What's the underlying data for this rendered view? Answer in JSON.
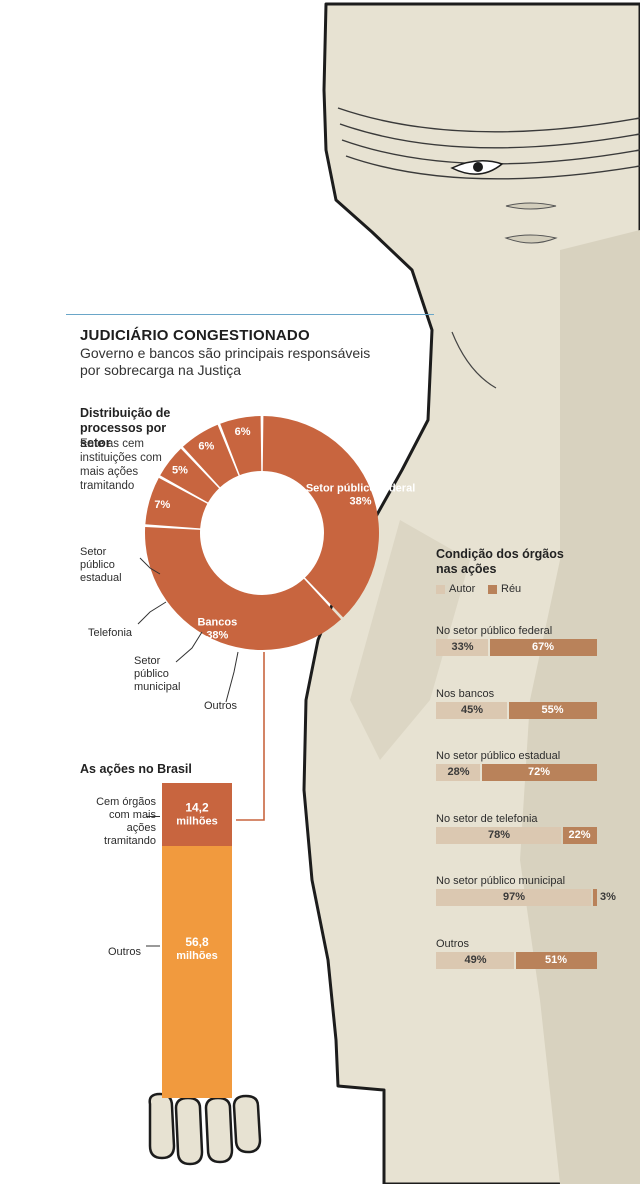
{
  "title": "JUDICIÁRIO CONGESTIONADO",
  "subtitle": "Governo e bancos são principais responsáveis por sobrecarga na Justiça",
  "colors": {
    "donut": "#c8653f",
    "autor": "#dbc8b1",
    "reu": "#b9825a",
    "outros_bar": "#f19a3e",
    "cem_bar": "#c8653f",
    "statue_bg": "#e7e2d2",
    "statue_shadow": "#d3cebc",
    "rule": "#6aa6c8"
  },
  "donut": {
    "heading": "Distribuição de processos por setor",
    "note": "Ente as cem instituições com mais ações tramitando"
  },
  "brasil": {
    "heading": "As ações no Brasil",
    "cem_label": "Cem órgãos com mais ações tramitando",
    "outros_label": "Outros"
  },
  "condicao": {
    "heading": "Condição dos órgãos nas ações",
    "legend_autor": "Autor",
    "legend_reu": "Réu"
  },
  "chart_data": [
    {
      "type": "pie",
      "title": "Distribuição de processos por setor",
      "subtitle": "Ente as cem instituições com mais ações tramitando",
      "unit": "%",
      "slices": [
        {
          "label": "Setor público federal",
          "value": 38,
          "display": "38%"
        },
        {
          "label": "Bancos",
          "value": 38,
          "display": "38%"
        },
        {
          "label": "Outros",
          "value": 7,
          "display": "7%"
        },
        {
          "label": "Setor público municipal",
          "value": 5,
          "display": "5%"
        },
        {
          "label": "Telefonia",
          "value": 6,
          "display": "6%"
        },
        {
          "label": "Setor público estadual",
          "value": 6,
          "display": "6%"
        }
      ]
    },
    {
      "type": "bar",
      "title": "As ações no Brasil",
      "stacked": true,
      "unit": "milhões",
      "segments": [
        {
          "label": "Cem órgãos com mais ações tramitando",
          "value": 14.2,
          "display_value": "14,2",
          "display_unit": "milhões"
        },
        {
          "label": "Outros",
          "value": 56.8,
          "display_value": "56,8",
          "display_unit": "milhões"
        }
      ]
    },
    {
      "type": "bar",
      "title": "Condição dos órgãos nas ações",
      "orientation": "horizontal",
      "stacked": true,
      "series_names": [
        "Autor",
        "Réu"
      ],
      "unit": "%",
      "rows": [
        {
          "label": "No setor público federal",
          "autor": 33,
          "reu": 67
        },
        {
          "label": "Nos bancos",
          "autor": 45,
          "reu": 55
        },
        {
          "label": "No setor público estadual",
          "autor": 28,
          "reu": 72
        },
        {
          "label": "No setor de telefonia",
          "autor": 78,
          "reu": 22
        },
        {
          "label": "No setor público municipal",
          "autor": 97,
          "reu": 3
        },
        {
          "label": "Outros",
          "autor": 49,
          "reu": 51
        }
      ]
    }
  ]
}
